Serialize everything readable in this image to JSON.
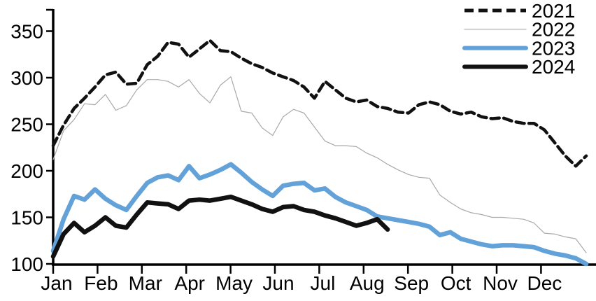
{
  "chart_data": {
    "type": "line",
    "title": "",
    "x_axis": {
      "labels": [
        "Jan",
        "Feb",
        "Mar",
        "Apr",
        "May",
        "Jun",
        "Jul",
        "Aug",
        "Sep",
        "Oct",
        "Nov",
        "Dec"
      ],
      "points_per_year": 52,
      "grid": false
    },
    "y_axis": {
      "min": 100,
      "max": 375,
      "ticks": [
        100,
        150,
        200,
        250,
        300,
        350
      ],
      "grid": false
    },
    "legend": {
      "position": "top-right",
      "entries": [
        "2021",
        "2022",
        "2023",
        "2024"
      ]
    },
    "colors": {
      "black_series": "#111111",
      "gray_series": "#a9a9a9",
      "blue_series": "#63a2d8",
      "axis": "#000000"
    },
    "series": [
      {
        "name": "2021",
        "color": "#111111",
        "style": "dashed",
        "width": 4.5,
        "values": [
          227,
          249,
          267,
          278,
          290,
          303,
          306,
          293,
          294,
          314,
          323,
          338,
          336,
          322,
          331,
          340,
          329,
          328,
          321,
          315,
          311,
          305,
          301,
          297,
          290,
          278,
          296,
          287,
          278,
          274,
          276,
          269,
          267,
          263,
          262,
          271,
          274,
          271,
          264,
          261,
          263,
          258,
          256,
          257,
          253,
          251,
          251,
          244,
          230,
          216,
          205,
          216
        ]
      },
      {
        "name": "2022",
        "color": "#a9a9a9",
        "style": "thin-solid",
        "width": 1.2,
        "values": [
          212,
          243,
          255,
          272,
          271,
          282,
          265,
          270,
          287,
          298,
          298,
          296,
          290,
          298,
          283,
          273,
          292,
          301,
          264,
          262,
          246,
          238,
          258,
          266,
          262,
          247,
          232,
          227,
          227,
          226,
          219,
          214,
          207,
          201,
          196,
          193,
          192,
          174,
          166,
          159,
          155,
          153,
          150,
          150,
          149,
          148,
          144,
          133,
          132,
          129,
          127,
          112
        ]
      },
      {
        "name": "2023",
        "color": "#63a2d8",
        "style": "thick-solid",
        "width": 6.5,
        "values": [
          114,
          148,
          173,
          169,
          180,
          170,
          163,
          158,
          173,
          187,
          193,
          195,
          190,
          205,
          192,
          196,
          201,
          207,
          198,
          188,
          180,
          173,
          184,
          186,
          187,
          179,
          181,
          172,
          166,
          162,
          158,
          151,
          149,
          147,
          145,
          143,
          140,
          131,
          134,
          127,
          124,
          121,
          119,
          120,
          120,
          119,
          118,
          114,
          111,
          109,
          106,
          100
        ]
      },
      {
        "name": "2024",
        "color": "#111111",
        "style": "thick-solid",
        "width": 6.5,
        "values": [
          108,
          132,
          144,
          134,
          141,
          150,
          141,
          139,
          153,
          166,
          165,
          164,
          159,
          168,
          169,
          168,
          170,
          172,
          168,
          164,
          159,
          156,
          161,
          162,
          158,
          156,
          152,
          149,
          145,
          141,
          144,
          148,
          137
        ]
      }
    ]
  }
}
